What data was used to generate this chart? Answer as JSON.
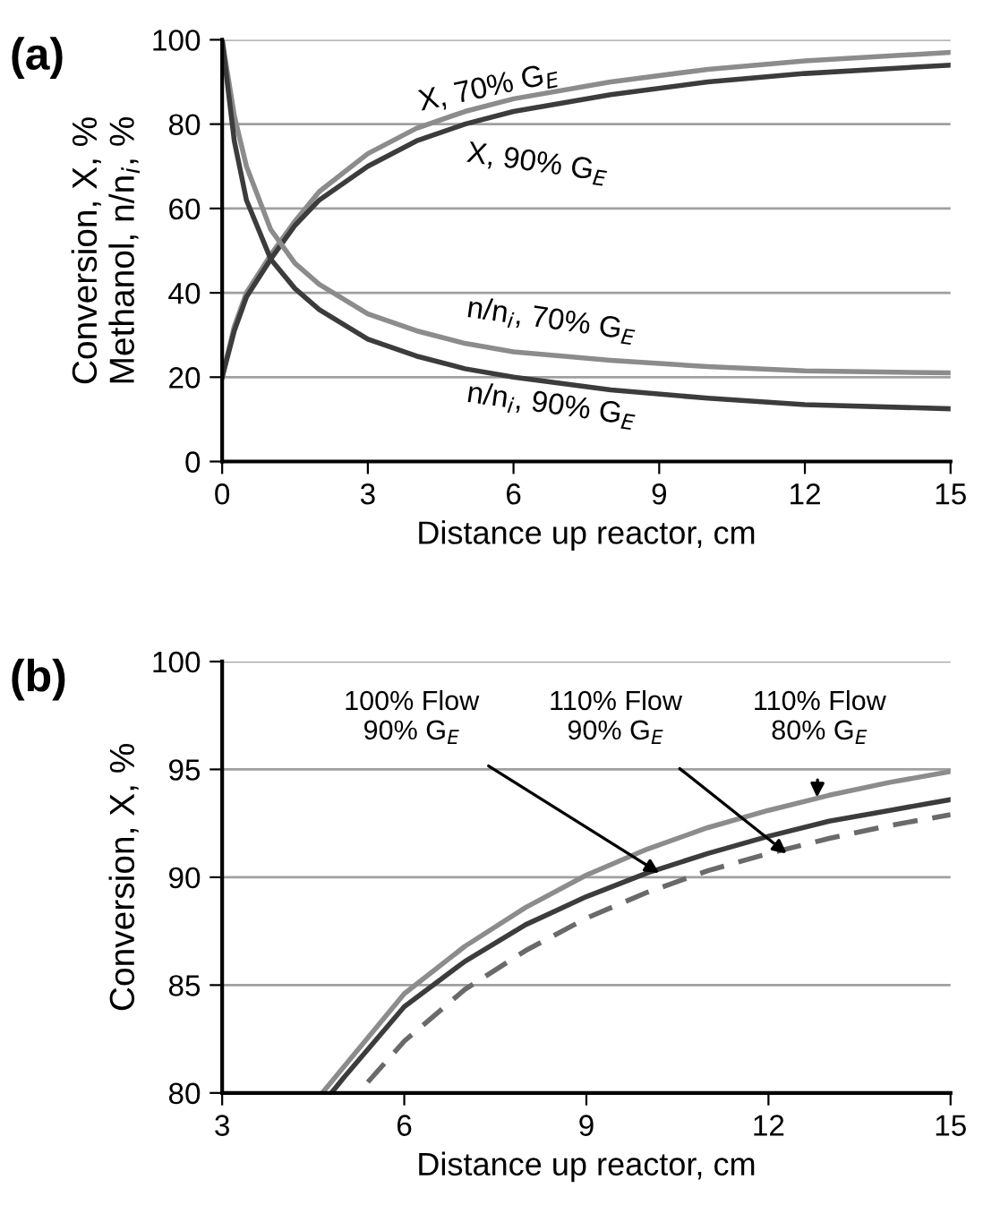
{
  "chart_data": [
    {
      "type": "line",
      "title": "(a)",
      "xlabel": "Distance up reactor, cm",
      "ylabel": "Conversion, X, %\nMethanol, n/n$_{i}$, %",
      "xlim": [
        0,
        15
      ],
      "xticks": [
        0,
        3,
        6,
        9,
        12,
        15
      ],
      "ylim": [
        0,
        100
      ],
      "yticks": [
        0,
        20,
        40,
        60,
        80,
        100
      ],
      "grid": "y",
      "legend": false,
      "marker": "none",
      "line_style": "solid",
      "series": [
        {
          "name": "X, 70% G$_{E}$",
          "color": "#8c8c8c",
          "x": [
            0,
            0.25,
            0.5,
            1,
            1.5,
            2,
            3,
            4,
            5,
            6,
            8,
            10,
            12,
            15
          ],
          "values": [
            20,
            32,
            40,
            49,
            57,
            64,
            73,
            79,
            83,
            86,
            90,
            93,
            95,
            97
          ]
        },
        {
          "name": "X, 90% G$_{E}$",
          "color": "#3c3c3c",
          "x": [
            0,
            0.25,
            0.5,
            1,
            1.5,
            2,
            3,
            4,
            5,
            6,
            8,
            10,
            12,
            15
          ],
          "values": [
            20,
            31,
            39,
            48,
            56,
            62,
            70,
            76,
            80,
            83,
            87,
            90,
            92,
            94
          ]
        },
        {
          "name": "n/n$_{i}$, 70% G$_{E}$",
          "color": "#8c8c8c",
          "x": [
            0,
            0.25,
            0.5,
            1,
            1.5,
            2,
            3,
            4,
            5,
            6,
            8,
            10,
            12,
            15
          ],
          "values": [
            100,
            82,
            70,
            55,
            47,
            42,
            35,
            31,
            28,
            26,
            24,
            22.5,
            21.5,
            21
          ]
        },
        {
          "name": "n/n$_{i}$, 90% G$_{E}$",
          "color": "#3c3c3c",
          "x": [
            0,
            0.25,
            0.5,
            1,
            1.5,
            2,
            3,
            4,
            5,
            6,
            8,
            10,
            12,
            15
          ],
          "values": [
            100,
            76,
            62,
            48,
            41,
            36,
            29,
            25,
            22,
            20,
            17,
            15,
            13.5,
            12.5
          ]
        }
      ]
    },
    {
      "type": "line",
      "title": "(b)",
      "xlabel": "Distance up reactor, cm",
      "ylabel": "Conversion, X, %",
      "xlim": [
        3,
        15
      ],
      "xticks": [
        3,
        6,
        9,
        12,
        15
      ],
      "ylim": [
        80,
        100
      ],
      "yticks": [
        80,
        85,
        90,
        95,
        100
      ],
      "grid": "y",
      "legend": false,
      "marker": "none",
      "series": [
        {
          "color": "#8c8c8c",
          "line_style": "solid",
          "x": [
            4.65,
            5,
            6,
            7,
            8,
            9,
            10,
            11,
            12,
            13,
            14,
            15
          ],
          "values": [
            80,
            81.2,
            84.6,
            86.8,
            88.6,
            90.1,
            91.3,
            92.3,
            93.1,
            93.8,
            94.4,
            94.9
          ]
        },
        {
          "color": "#3c3c3c",
          "line_style": "solid",
          "x": [
            4.8,
            5,
            6,
            7,
            8,
            9,
            10,
            11,
            12,
            13,
            14,
            15
          ],
          "values": [
            80,
            80.7,
            84.0,
            86.1,
            87.8,
            89.1,
            90.2,
            91.1,
            91.9,
            92.6,
            93.1,
            93.6
          ]
        },
        {
          "color": "#6a6a6a",
          "line_style": "dashed",
          "x": [
            5.4,
            6,
            7,
            8,
            9,
            10,
            11,
            12,
            13,
            14,
            15
          ],
          "values": [
            80.5,
            82.4,
            84.8,
            86.6,
            88.1,
            89.3,
            90.3,
            91.1,
            91.8,
            92.4,
            92.9
          ]
        }
      ],
      "annotations": [
        {
          "text": "100% Flow\n90% G$_{E}$",
          "x": 10.2,
          "y": 90.2
        },
        {
          "text": "110% Flow\n90% G$_{E}$",
          "x": 12.3,
          "y": 91.1
        },
        {
          "text": "110% Flow\n80% G$_{E}$",
          "x": 12.8,
          "y": 93.7
        }
      ]
    }
  ]
}
